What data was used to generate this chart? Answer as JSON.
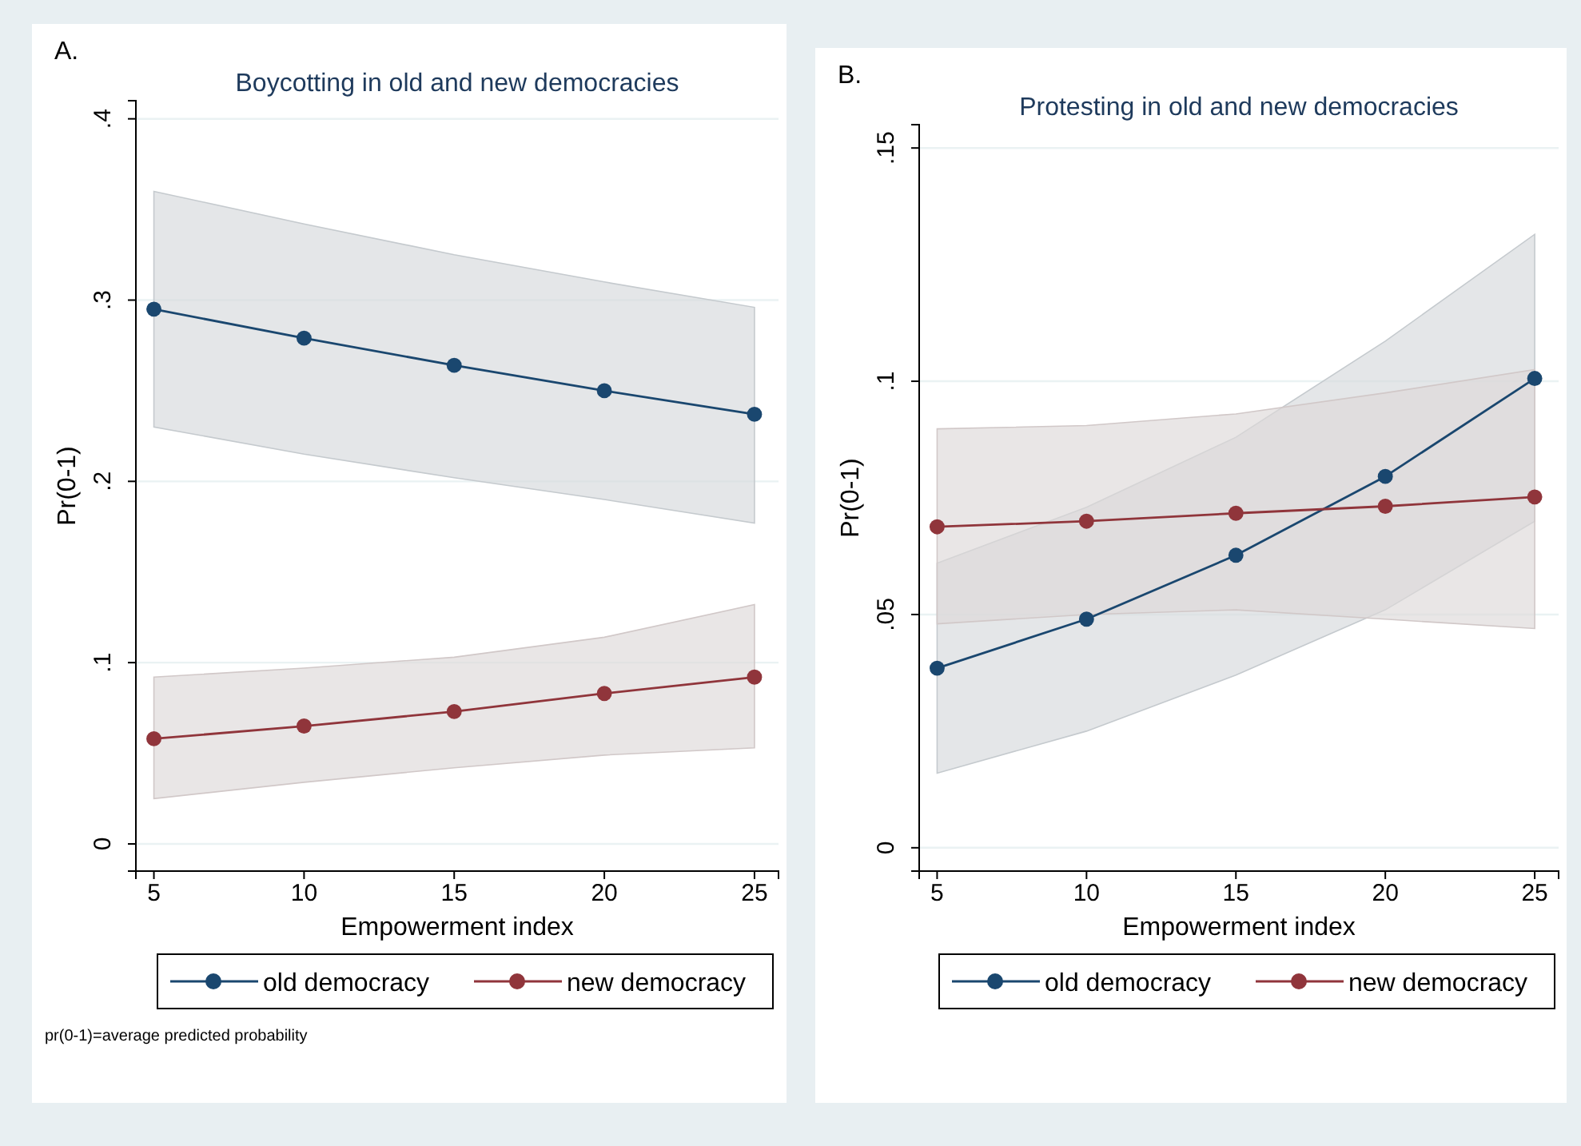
{
  "chart_data": [
    {
      "type": "line",
      "title": "Boycotting in old and new democracies",
      "xlabel": "Empowerment index",
      "ylabel": "Pr(0-1)",
      "annotations": [
        "A.",
        "pr(0-1)=average predicted probability"
      ],
      "x": [
        5,
        10,
        15,
        20,
        25
      ],
      "xlim": [
        4.4,
        25.8
      ],
      "xticks": [
        5,
        10,
        15,
        20,
        25
      ],
      "ylim": [
        -0.015,
        0.41
      ],
      "yticks": [
        {
          "value": 0,
          "label": "0"
        },
        {
          "value": 0.1,
          "label": ".1"
        },
        {
          "value": 0.2,
          "label": ".2"
        },
        {
          "value": 0.3,
          "label": ".3"
        },
        {
          "value": 0.4,
          "label": ".4"
        }
      ],
      "grid": "y",
      "legend": "bottom",
      "marker": "circle",
      "line_style": "solid",
      "series": [
        {
          "name": "old democracy",
          "color": "#1a476f",
          "values": [
            0.295,
            0.279,
            0.264,
            0.25,
            0.237
          ],
          "lower": [
            0.23,
            0.215,
            0.202,
            0.19,
            0.177
          ],
          "upper": [
            0.36,
            0.342,
            0.325,
            0.31,
            0.296
          ]
        },
        {
          "name": "new democracy",
          "color": "#90353b",
          "values": [
            0.058,
            0.065,
            0.073,
            0.083,
            0.092
          ],
          "lower": [
            0.025,
            0.034,
            0.042,
            0.049,
            0.053
          ],
          "upper": [
            0.092,
            0.097,
            0.103,
            0.114,
            0.132
          ]
        }
      ]
    },
    {
      "type": "line",
      "title": "Protesting in old and new democracies",
      "xlabel": "Empowerment index",
      "ylabel": "Pr(0-1)",
      "annotations": [
        "B."
      ],
      "x": [
        5,
        10,
        15,
        20,
        25
      ],
      "xlim": [
        4.4,
        25.8
      ],
      "xticks": [
        5,
        10,
        15,
        20,
        25
      ],
      "ylim": [
        -0.005,
        0.155
      ],
      "yticks": [
        {
          "value": 0,
          "label": "0"
        },
        {
          "value": 0.05,
          "label": ".05"
        },
        {
          "value": 0.1,
          "label": ".1"
        },
        {
          "value": 0.15,
          "label": ".15"
        }
      ],
      "grid": "y",
      "legend": "bottom",
      "marker": "circle",
      "line_style": "solid",
      "series": [
        {
          "name": "old democracy",
          "color": "#1a476f",
          "values": [
            0.0385,
            0.049,
            0.0627,
            0.0796,
            0.1006
          ],
          "lower": [
            0.016,
            0.025,
            0.037,
            0.051,
            0.07
          ],
          "upper": [
            0.061,
            0.073,
            0.088,
            0.1086,
            0.1315
          ]
        },
        {
          "name": "new democracy",
          "color": "#90353b",
          "values": [
            0.0688,
            0.07,
            0.0717,
            0.0732,
            0.0752
          ],
          "lower": [
            0.048,
            0.05,
            0.051,
            0.049,
            0.047
          ],
          "upper": [
            0.0898,
            0.0905,
            0.093,
            0.0975,
            0.1025
          ]
        }
      ]
    }
  ]
}
